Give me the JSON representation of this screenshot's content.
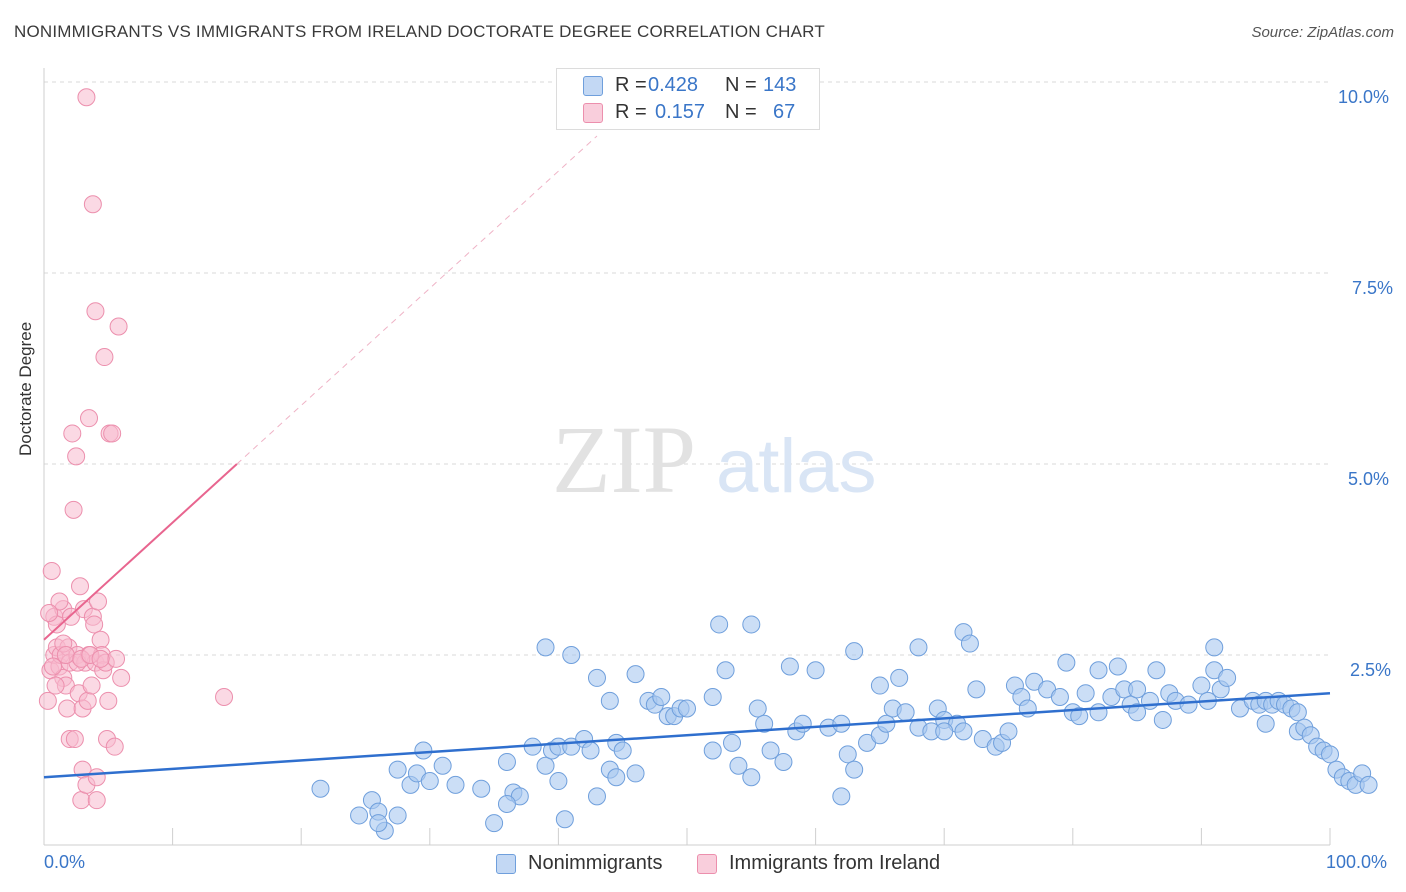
{
  "title": "NONIMMIGRANTS VS IMMIGRANTS FROM IRELAND DOCTORATE DEGREE CORRELATION CHART",
  "source": "Source: ZipAtlas.com",
  "watermark": {
    "zip": "ZIP",
    "atlas": "atlas"
  },
  "colors": {
    "blue_fill": "#a9c8f0",
    "blue_stroke": "#6f9fdc",
    "blue_line": "#2f6fce",
    "pink_fill": "#f7b9cd",
    "pink_stroke": "#ec8fad",
    "pink_line": "#e8658f",
    "tick_text": "#3a76c8",
    "grid": "#d8d8d8"
  },
  "legend_top": {
    "rows": [
      {
        "r_label": "R =",
        "r_value": "0.428",
        "n_label": "N =",
        "n_value": "143",
        "color": "blue"
      },
      {
        "r_label": "R =",
        "r_value": "0.157",
        "n_label": "N =",
        "n_value": "67",
        "color": "pink"
      }
    ]
  },
  "legend_bottom": [
    {
      "label": "Nonimmigrants",
      "color": "blue"
    },
    {
      "label": "Immigrants from Ireland",
      "color": "pink"
    }
  ],
  "chart_data": {
    "type": "scatter",
    "title": "NONIMMIGRANTS VS IMMIGRANTS FROM IRELAND DOCTORATE DEGREE CORRELATION CHART",
    "xlabel": "",
    "ylabel": "Doctorate Degree",
    "xlim": [
      0,
      100
    ],
    "ylim": [
      0,
      10.5
    ],
    "x_tick_labels": [
      "0.0%",
      "100.0%"
    ],
    "y_ticks": [
      2.5,
      5.0,
      7.5,
      10.0
    ],
    "y_tick_labels": [
      "2.5%",
      "5.0%",
      "7.5%",
      "10.0%"
    ],
    "grid": true,
    "legend_position": "bottom",
    "series": [
      {
        "name": "Nonimmigrants",
        "color": "blue",
        "r": 0.428,
        "n": 143,
        "trend": {
          "x": [
            0,
            100
          ],
          "y": [
            0.9,
            2.0
          ]
        },
        "points": [
          [
            21.5,
            0.75
          ],
          [
            24.5,
            0.4
          ],
          [
            25.5,
            0.6
          ],
          [
            26,
            0.45
          ],
          [
            26.5,
            0.2
          ],
          [
            27.5,
            0.4
          ],
          [
            27.5,
            1.0
          ],
          [
            28.5,
            0.8
          ],
          [
            29,
            0.95
          ],
          [
            29.5,
            1.25
          ],
          [
            30,
            0.85
          ],
          [
            31,
            1.05
          ],
          [
            32,
            0.8
          ],
          [
            34,
            0.75
          ],
          [
            35,
            0.3
          ],
          [
            36,
            1.1
          ],
          [
            36.5,
            0.7
          ],
          [
            37,
            0.65
          ],
          [
            38,
            1.3
          ],
          [
            39,
            1.05
          ],
          [
            39.5,
            1.25
          ],
          [
            39,
            2.6
          ],
          [
            40,
            1.3
          ],
          [
            40.5,
            0.35
          ],
          [
            41,
            2.5
          ],
          [
            41,
            1.3
          ],
          [
            42,
            1.4
          ],
          [
            42.5,
            1.25
          ],
          [
            43,
            2.2
          ],
          [
            43,
            0.65
          ],
          [
            44,
            1.0
          ],
          [
            44.5,
            0.9
          ],
          [
            44.5,
            1.35
          ],
          [
            45,
            1.25
          ],
          [
            46,
            0.95
          ],
          [
            46,
            2.25
          ],
          [
            47,
            1.9
          ],
          [
            47.5,
            1.85
          ],
          [
            48,
            1.95
          ],
          [
            48.5,
            1.7
          ],
          [
            49,
            1.7
          ],
          [
            49.5,
            1.8
          ],
          [
            50,
            1.8
          ],
          [
            52,
            1.25
          ],
          [
            52.5,
            2.9
          ],
          [
            53,
            2.3
          ],
          [
            53.5,
            1.35
          ],
          [
            54,
            1.05
          ],
          [
            55,
            0.9
          ],
          [
            55.5,
            1.8
          ],
          [
            56,
            1.6
          ],
          [
            56.5,
            1.25
          ],
          [
            57.5,
            1.1
          ],
          [
            58,
            2.35
          ],
          [
            58.5,
            1.5
          ],
          [
            59,
            1.6
          ],
          [
            60,
            2.3
          ],
          [
            61,
            1.55
          ],
          [
            62,
            1.6
          ],
          [
            62,
            0.65
          ],
          [
            62.5,
            1.2
          ],
          [
            63,
            1.0
          ],
          [
            63,
            2.55
          ],
          [
            64,
            1.35
          ],
          [
            65,
            1.45
          ],
          [
            65,
            2.1
          ],
          [
            65.5,
            1.6
          ],
          [
            66,
            1.8
          ],
          [
            66.5,
            2.2
          ],
          [
            67,
            1.75
          ],
          [
            68,
            1.55
          ],
          [
            68,
            2.6
          ],
          [
            69,
            1.5
          ],
          [
            69.5,
            1.8
          ],
          [
            70,
            1.65
          ],
          [
            71,
            1.6
          ],
          [
            71.5,
            1.5
          ],
          [
            71.5,
            2.8
          ],
          [
            72,
            2.65
          ],
          [
            72.5,
            2.05
          ],
          [
            73,
            1.4
          ],
          [
            74,
            1.3
          ],
          [
            74.5,
            1.35
          ],
          [
            75,
            1.5
          ],
          [
            75.5,
            2.1
          ],
          [
            76,
            1.95
          ],
          [
            76.5,
            1.8
          ],
          [
            77,
            2.15
          ],
          [
            78,
            2.05
          ],
          [
            79,
            1.95
          ],
          [
            79.5,
            2.4
          ],
          [
            80,
            1.75
          ],
          [
            80.5,
            1.7
          ],
          [
            81,
            2.0
          ],
          [
            82,
            2.3
          ],
          [
            82,
            1.75
          ],
          [
            83,
            1.95
          ],
          [
            83.5,
            2.35
          ],
          [
            84,
            2.05
          ],
          [
            84.5,
            1.85
          ],
          [
            85,
            2.05
          ],
          [
            86,
            1.9
          ],
          [
            86.5,
            2.3
          ],
          [
            87,
            1.65
          ],
          [
            87.5,
            2.0
          ],
          [
            88,
            1.9
          ],
          [
            89,
            1.85
          ],
          [
            90,
            2.1
          ],
          [
            90.5,
            1.9
          ],
          [
            91,
            2.6
          ],
          [
            91,
            2.3
          ],
          [
            91.5,
            2.05
          ],
          [
            92,
            2.2
          ],
          [
            93,
            1.8
          ],
          [
            94,
            1.9
          ],
          [
            94.5,
            1.85
          ],
          [
            95,
            1.9
          ],
          [
            95.5,
            1.85
          ],
          [
            96,
            1.9
          ],
          [
            96.5,
            1.85
          ],
          [
            97,
            1.8
          ],
          [
            97.5,
            1.75
          ],
          [
            97.5,
            1.5
          ],
          [
            98,
            1.55
          ],
          [
            98.5,
            1.45
          ],
          [
            99,
            1.3
          ],
          [
            99.5,
            1.25
          ],
          [
            100,
            1.2
          ],
          [
            100.5,
            1.0
          ],
          [
            101,
            0.9
          ],
          [
            101.5,
            0.85
          ],
          [
            102,
            0.8
          ],
          [
            102.5,
            0.95
          ],
          [
            103,
            0.8
          ],
          [
            36,
            0.55
          ],
          [
            40,
            0.85
          ],
          [
            26,
            0.3
          ],
          [
            44,
            1.9
          ],
          [
            55,
            2.9
          ],
          [
            52,
            1.95
          ],
          [
            70,
            1.5
          ],
          [
            85,
            1.75
          ],
          [
            95,
            1.6
          ]
        ]
      },
      {
        "name": "Immigrants from Ireland",
        "color": "pink",
        "r": 0.157,
        "n": 67,
        "trend": {
          "x": [
            0,
            15
          ],
          "y": [
            2.7,
            5.0
          ]
        },
        "points": [
          [
            0.3,
            1.9
          ],
          [
            0.5,
            2.3
          ],
          [
            0.6,
            3.6
          ],
          [
            0.8,
            2.5
          ],
          [
            0.8,
            3.0
          ],
          [
            1.0,
            2.6
          ],
          [
            1.0,
            2.9
          ],
          [
            1.2,
            2.35
          ],
          [
            1.3,
            2.5
          ],
          [
            1.5,
            3.1
          ],
          [
            1.5,
            2.2
          ],
          [
            1.7,
            2.1
          ],
          [
            1.8,
            1.8
          ],
          [
            1.9,
            2.6
          ],
          [
            2.0,
            2.4
          ],
          [
            2.0,
            1.4
          ],
          [
            2.1,
            3.0
          ],
          [
            2.2,
            5.4
          ],
          [
            2.3,
            4.4
          ],
          [
            2.4,
            1.4
          ],
          [
            2.5,
            5.1
          ],
          [
            2.6,
            2.5
          ],
          [
            2.7,
            2.0
          ],
          [
            2.8,
            3.4
          ],
          [
            2.9,
            0.6
          ],
          [
            3.0,
            1.0
          ],
          [
            3.0,
            1.8
          ],
          [
            3.1,
            3.1
          ],
          [
            3.2,
            2.4
          ],
          [
            3.3,
            0.8
          ],
          [
            3.4,
            1.9
          ],
          [
            3.5,
            2.5
          ],
          [
            3.5,
            5.6
          ],
          [
            3.7,
            2.1
          ],
          [
            3.8,
            3.0
          ],
          [
            3.9,
            2.9
          ],
          [
            4.0,
            2.4
          ],
          [
            4.1,
            0.9
          ],
          [
            4.2,
            3.2
          ],
          [
            4.4,
            2.7
          ],
          [
            4.5,
            2.5
          ],
          [
            4.6,
            2.3
          ],
          [
            4.8,
            2.4
          ],
          [
            4.9,
            1.4
          ],
          [
            5.0,
            1.9
          ],
          [
            5.1,
            5.4
          ],
          [
            5.3,
            5.4
          ],
          [
            5.5,
            1.3
          ],
          [
            5.6,
            2.45
          ],
          [
            5.8,
            6.8
          ],
          [
            6.0,
            2.2
          ],
          [
            3.3,
            9.8
          ],
          [
            3.8,
            8.4
          ],
          [
            4.0,
            7.0
          ],
          [
            4.7,
            6.4
          ],
          [
            4.1,
            0.6
          ],
          [
            1.5,
            2.65
          ],
          [
            1.2,
            3.2
          ],
          [
            2.6,
            2.4
          ],
          [
            0.4,
            3.05
          ],
          [
            0.9,
            2.1
          ],
          [
            14.0,
            1.95
          ],
          [
            1.7,
            2.5
          ],
          [
            2.9,
            2.45
          ],
          [
            3.6,
            2.5
          ],
          [
            4.4,
            2.45
          ],
          [
            0.7,
            2.35
          ]
        ]
      }
    ]
  }
}
